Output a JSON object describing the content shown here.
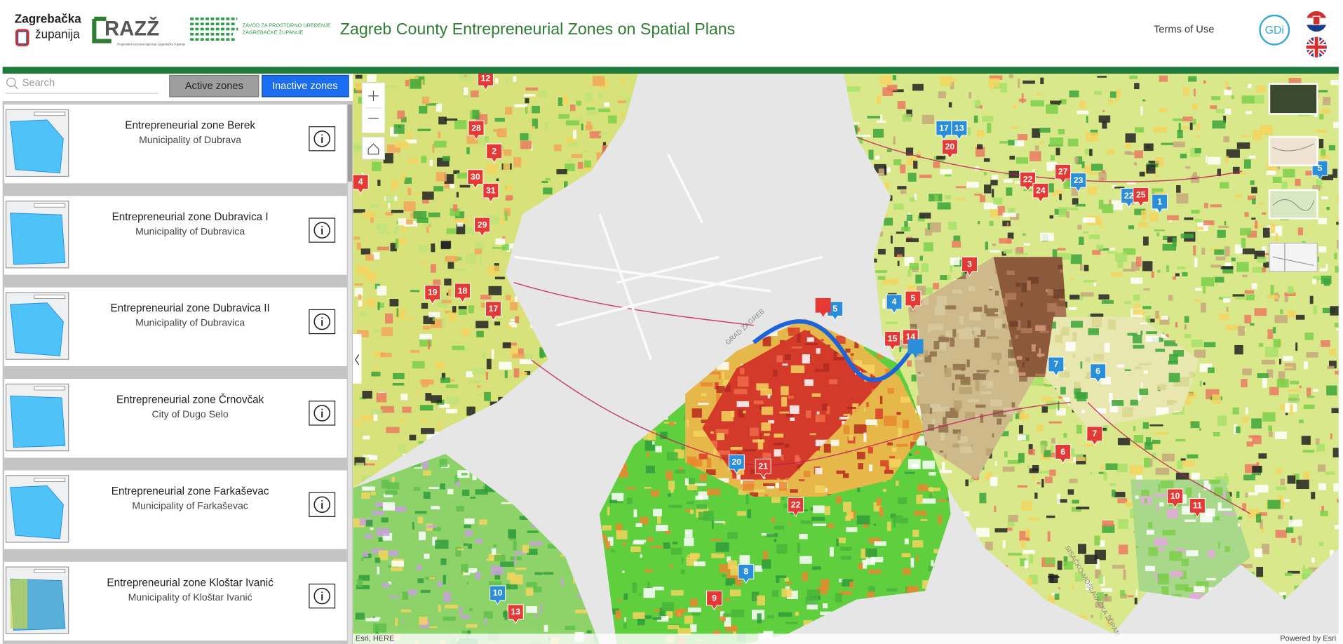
{
  "header": {
    "logo_county": [
      "Zagrebačka",
      "županija"
    ],
    "logo_razz": "RAZŽ",
    "logo_razz_caption": "Regionalna razvojna agencija Zagrebačke županije",
    "logo_zavod": [
      "ZAVOD ZA PROSTORNO UREĐENJE",
      "ZAGREBAČKE ŽUPANIJE"
    ],
    "title": "Zagreb County Entrepreneurial Zones on Spatial Plans",
    "terms": "Terms of Use",
    "gdi": "GDi"
  },
  "sidebar": {
    "search_placeholder": "Search",
    "tabs": [
      "Active zones",
      "Inactive zones"
    ],
    "zones": [
      {
        "name": "Entrepreneurial zone Berek",
        "place": "Municipality of Dubrava"
      },
      {
        "name": "Entrepreneurial zone Dubravica I",
        "place": "Municipality of Dubravica"
      },
      {
        "name": "Entrepreneurial zone Dubravica II",
        "place": "Municipality of Dubravica"
      },
      {
        "name": "Entrepreneurial zone Črnovčak",
        "place": "City of Dugo Selo"
      },
      {
        "name": "Entrepreneurial zone Farkaševac",
        "place": "Municipality of Farkaševac"
      },
      {
        "name": "Entrepreneurial zone Kloštar Ivanić",
        "place": "Municipality of Kloštar Ivanić"
      }
    ]
  },
  "map": {
    "labels": [
      "GRAD ZAGREB",
      "SISAČKO-MOSLAVAČKA ŽUPAN"
    ],
    "attribution": "Esri, HERE",
    "powered": "Powered by Esri",
    "markers": [
      {
        "label": "12",
        "color": "#e53935"
      },
      {
        "label": "28",
        "color": "#e53935"
      },
      {
        "label": "2",
        "color": "#e53935"
      },
      {
        "label": "30",
        "color": "#e53935"
      },
      {
        "label": "31",
        "color": "#e53935"
      },
      {
        "label": "29",
        "color": "#e53935"
      },
      {
        "label": "4",
        "color": "#e53935"
      },
      {
        "label": "19",
        "color": "#e53935"
      },
      {
        "label": "18",
        "color": "#e53935"
      },
      {
        "label": "17",
        "color": "#e53935"
      },
      {
        "label": "17",
        "color": "#2a8fd8"
      },
      {
        "label": "13",
        "color": "#2a8fd8"
      },
      {
        "label": "20",
        "color": "#e53935"
      },
      {
        "label": "22",
        "color": "#e53935"
      },
      {
        "label": "24",
        "color": "#e53935"
      },
      {
        "label": "27",
        "color": "#e53935"
      },
      {
        "label": "23",
        "color": "#2a8fd8"
      },
      {
        "label": "22",
        "color": "#2a8fd8"
      },
      {
        "label": "25",
        "color": "#e53935"
      },
      {
        "label": "1",
        "color": "#2a8fd8"
      },
      {
        "label": "5",
        "color": "#2a8fd8"
      },
      {
        "label": "3",
        "color": "#e53935"
      },
      {
        "label": "4",
        "color": "#2a8fd8"
      },
      {
        "label": "5",
        "color": "#e53935"
      },
      {
        "label": "5",
        "color": "#2a8fd8"
      },
      {
        "label": "15",
        "color": "#e53935"
      },
      {
        "label": "14",
        "color": "#e53935"
      },
      {
        "label": "7",
        "color": "#2a8fd8"
      },
      {
        "label": "6",
        "color": "#2a8fd8"
      },
      {
        "label": "6",
        "color": "#e53935"
      },
      {
        "label": "7",
        "color": "#e53935"
      },
      {
        "label": "20",
        "color": "#2a8fd8"
      },
      {
        "label": "21",
        "color": "#e53935"
      },
      {
        "label": "22",
        "color": "#e53935"
      },
      {
        "label": "10",
        "color": "#e53935"
      },
      {
        "label": "11",
        "color": "#e53935"
      },
      {
        "label": "8",
        "color": "#2a8fd8"
      },
      {
        "label": "9",
        "color": "#e53935"
      },
      {
        "label": "10",
        "color": "#2a8fd8"
      },
      {
        "label": "13",
        "color": "#e53935"
      }
    ]
  }
}
